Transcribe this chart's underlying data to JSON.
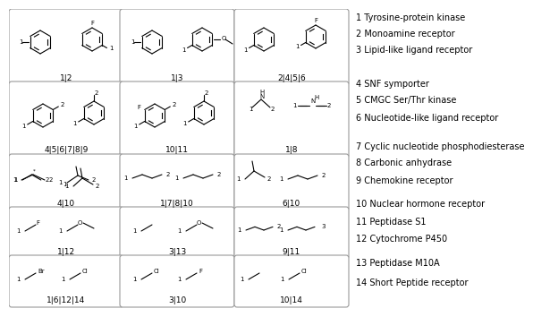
{
  "legend_items": [
    "1 Tyrosine-protein kinase",
    "2 Monoamine receptor",
    "3 Lipid-like ligand receptor",
    "4 SNF symporter",
    "5 CMGC Ser/Thr kinase",
    "6 Nucleotide-like ligand receptor",
    "7 Cyclic nucleotide phosphodiesterase",
    "8 Carbonic anhydrase",
    "9 Chemokine receptor",
    "10 Nuclear hormone receptor",
    "11 Peptidase S1",
    "12 Cytochrome P450",
    "13 Peptidase M10A",
    "14 Short Peptide receptor"
  ],
  "box_labels": [
    "1|2",
    "1|3",
    "2|4|5|6",
    "4|5|6|7|8|9",
    "10|11",
    "1|8",
    "4|10",
    "1|7|8|10",
    "6|10",
    "1|12",
    "3|13",
    "9|11",
    "1|6|12|14",
    "3|10",
    "10|14"
  ],
  "bg_color": "#ffffff",
  "line_color": "#000000",
  "box_edge_color": "#999999",
  "font_size_legend": 7.0,
  "font_size_label": 6.5,
  "font_size_atom": 5.5
}
